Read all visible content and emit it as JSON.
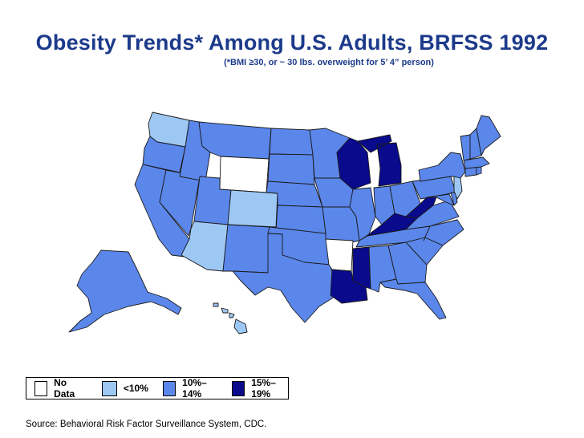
{
  "title": "Obesity Trends* Among U.S. Adults, BRFSS 1992",
  "subtitle": "(*BMI ≥30, or ~ 30 lbs. overweight for 5’ 4” person)",
  "source": "Source: Behavioral Risk Factor Surveillance System, CDC.",
  "colors": {
    "no_data": "#ffffff",
    "lt10": "#9ec8f4",
    "p10_14": "#5b87ea",
    "p15_19": "#0a0a8c",
    "border": "#1a1a1a",
    "title": "#1c3a8a"
  },
  "legend": [
    {
      "key": "no_data",
      "label": "No Data"
    },
    {
      "key": "lt10",
      "label": "<10%"
    },
    {
      "key": "p10_14",
      "label": "10%–14%"
    },
    {
      "key": "p15_19",
      "label": "15%–19%"
    }
  ],
  "state_categories": {
    "WA": "lt10",
    "OR": "p10_14",
    "CA": "p10_14",
    "NV": "p10_14",
    "ID": "p10_14",
    "MT": "p10_14",
    "WY": "no_data",
    "UT": "p10_14",
    "AZ": "lt10",
    "CO": "lt10",
    "NM": "p10_14",
    "ND": "p10_14",
    "SD": "p10_14",
    "NE": "p10_14",
    "KS": "p10_14",
    "OK": "p10_14",
    "TX": "p10_14",
    "MN": "p10_14",
    "IA": "p10_14",
    "MO": "p10_14",
    "AR": "no_data",
    "LA": "p15_19",
    "WI": "p15_19",
    "IL": "p10_14",
    "MI": "p15_19",
    "IN": "p10_14",
    "OH": "p10_14",
    "KY": "p15_19",
    "TN": "p10_14",
    "MS": "p15_19",
    "AL": "p10_14",
    "GA": "p10_14",
    "FL": "p10_14",
    "SC": "p10_14",
    "NC": "p10_14",
    "VA": "p10_14",
    "WV": "p15_19",
    "MD": "p10_14",
    "DE": "p10_14",
    "PA": "p10_14",
    "NJ": "lt10",
    "NY": "p10_14",
    "CT": "p10_14",
    "RI": "p10_14",
    "MA": "p10_14",
    "VT": "p10_14",
    "NH": "p10_14",
    "ME": "p10_14",
    "AK": "p10_14",
    "HI": "lt10"
  }
}
